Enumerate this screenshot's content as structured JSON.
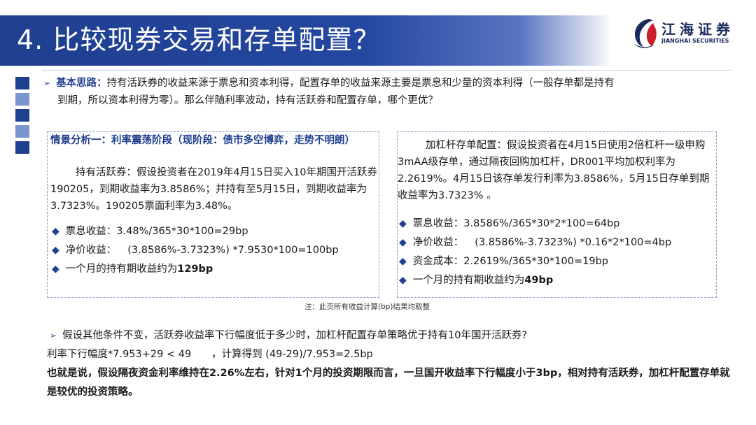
{
  "header": {
    "title": "4. 比较现券交易和存单配置？",
    "logo_name": "江海证券",
    "logo_sub": "JIANGHAI SECURITIES"
  },
  "colors": {
    "primary": "#1f3f8f",
    "square_dark": "#1f3f8f",
    "square_light": "#7b95cf"
  },
  "intro": {
    "label": "基本思路：",
    "text_line1": "持有活跃券的收益来源于票息和资本利得，配置存单的收益来源主要是票息和少量的资本利得（一般存单都是持有",
    "text_line2": "到期，所以资本利得为零）。那么伴随利率波动，持有活跃券和配置存单，哪个更优？"
  },
  "left_box": {
    "heading": "情景分析一：利率震荡阶段（现阶段：债市多空博弈，走势不明朗）",
    "paragraph": "持有活跃券：假设投资者在2019年4月15日买入10年期国开活跃券190205，到期收益率为3.8586%；并持有至5月15日，到期收益率为3.7323%。190205票面利率为3.48%。",
    "bullets": [
      {
        "label": "票息收益：",
        "value": "3.48%/365*30*100=29bp"
      },
      {
        "label": "净价收益：",
        "value": "(3.8586%-3.7323%) *7.9530*100=100bp"
      }
    ],
    "summary_text": "一个月的持有期收益约为",
    "summary_value": "129bp"
  },
  "right_box": {
    "paragraph": "加杠杆存单配置：假设投资者在4月15日使用2倍杠杆一级申购3mAA级存单，通过隔夜回购加杠杆，DR001平均加权利率为2.2619%。4月15日该存单发行利率为3.8586%，5月15日存单到期收益率为3.7323% 。",
    "bullets": [
      {
        "label": "票息收益：",
        "value": "3.8586%/365*30*2*100=64bp"
      },
      {
        "label": "净价收益：",
        "value": "(3.8586%-3.7323%) *0.16*2*100=4bp"
      },
      {
        "label": "资金成本：",
        "value": "2.2619%/365*30*100=19bp"
      }
    ],
    "summary_text": "一个月的持有期收益约为",
    "summary_value": "49bp"
  },
  "footnote": "注：此页所有收益计算(bp)结果均取整",
  "conclusion": {
    "question": "假设其他条件不变，活跃券收益率下行幅度低于多少时，加杠杆配置存单策略优于持有10年国开活跃券?",
    "formula": "利率下行幅度*7.953+29 < 49　　，计算得到 (49-29)/7.953=2.5bp",
    "bold_text": "也就是说，假设隔夜资金利率维持在2.26%左右，针对1个月的投资期限而言，一旦国开收益率下行幅度小于3bp，相对持有活跃券，加杠杆配置存单就是较优的投资策略。"
  }
}
